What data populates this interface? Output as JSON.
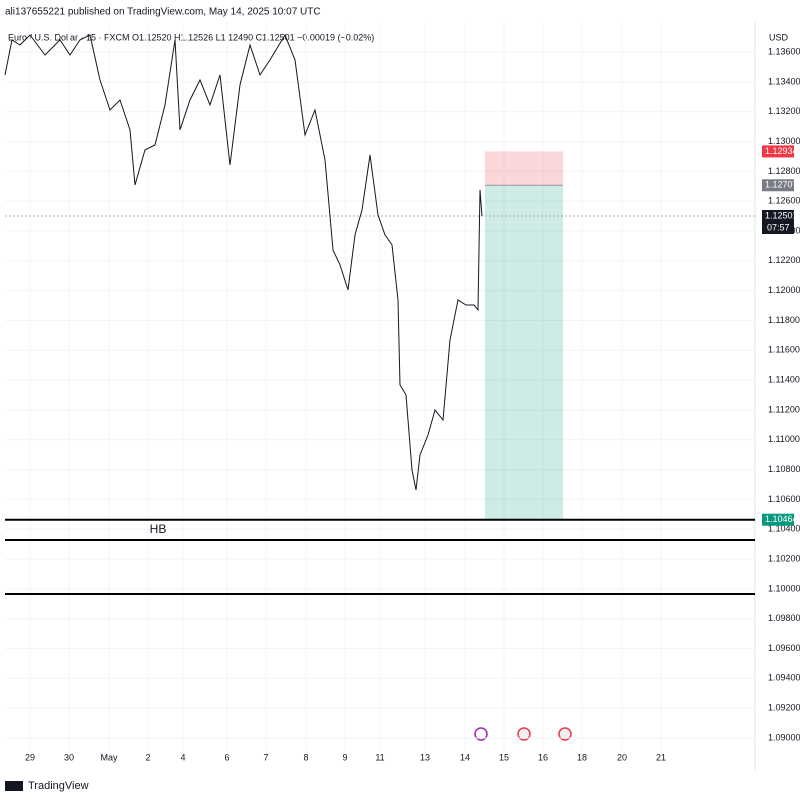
{
  "chart_data": {
    "type": "line",
    "publisher": "ali137655221 published on TradingView.com, May 14, 2025 10:07 UTC",
    "symbol_legend": "Euro / U.S. Dollar · 15 · FXCM  O1.12520  H1.12526  L1.12490  C1.12501  −0.00019 (−0.02%)",
    "currency": "USD",
    "brand": "TradingView",
    "color": "#131722",
    "x": [
      0,
      7,
      15,
      25,
      40,
      55,
      65,
      75,
      85,
      95,
      105,
      115,
      125,
      130,
      140,
      150,
      160,
      170,
      175,
      185,
      195,
      205,
      215,
      225,
      235,
      245,
      255,
      265,
      280,
      290,
      300,
      310,
      320,
      328,
      335,
      343,
      350,
      357,
      365,
      373,
      380,
      387,
      393,
      395,
      401,
      407,
      411,
      415,
      423,
      430,
      438,
      445,
      453,
      461,
      469,
      473,
      475,
      477
    ],
    "values": [
      1.13447,
      1.13682,
      1.13648,
      1.13715,
      1.13581,
      1.13682,
      1.13581,
      1.13682,
      1.13715,
      1.13413,
      1.13212,
      1.13279,
      1.13078,
      1.12709,
      1.12944,
      1.12977,
      1.13246,
      1.13682,
      1.13078,
      1.13279,
      1.13413,
      1.13246,
      1.13447,
      1.12843,
      1.1338,
      1.13648,
      1.13447,
      1.13548,
      1.13715,
      1.13548,
      1.13045,
      1.13212,
      1.12877,
      1.12273,
      1.12173,
      1.12005,
      1.12374,
      1.12541,
      1.1291,
      1.12508,
      1.12374,
      1.12307,
      1.11938,
      1.11368,
      1.11301,
      1.10798,
      1.10663,
      1.10898,
      1.11032,
      1.112,
      1.11133,
      1.1167,
      1.11938,
      1.11904,
      1.11904,
      1.11871,
      1.12676,
      1.12501
    ],
    "xlim": [
      0,
      750
    ],
    "ylim": [
      1.08906,
      1.13802
    ],
    "xticks": [
      {
        "value": 25,
        "label": "29"
      },
      {
        "value": 64,
        "label": "30"
      },
      {
        "value": 104,
        "label": "May"
      },
      {
        "value": 143,
        "label": "2"
      },
      {
        "value": 178,
        "label": "4"
      },
      {
        "value": 222,
        "label": "6"
      },
      {
        "value": 261,
        "label": "7"
      },
      {
        "value": 301,
        "label": "8"
      },
      {
        "value": 340,
        "label": "9"
      },
      {
        "value": 375,
        "label": "11"
      },
      {
        "value": 420,
        "label": "13"
      },
      {
        "value": 460,
        "label": "14"
      },
      {
        "value": 499,
        "label": "15"
      },
      {
        "value": 538,
        "label": "16"
      },
      {
        "value": 577,
        "label": "18"
      },
      {
        "value": 617,
        "label": "20"
      },
      {
        "value": 656,
        "label": "21"
      }
    ],
    "yticks": [
      {
        "value": 1.09,
        "label": "1.09000"
      },
      {
        "value": 1.092,
        "label": "1.09200"
      },
      {
        "value": 1.094,
        "label": "1.09400"
      },
      {
        "value": 1.096,
        "label": "1.09600"
      },
      {
        "value": 1.098,
        "label": "1.09800"
      },
      {
        "value": 1.1,
        "label": "1.10000"
      },
      {
        "value": 1.102,
        "label": "1.10200"
      },
      {
        "value": 1.104,
        "label": "1.10400"
      },
      {
        "value": 1.106,
        "label": "1.10600"
      },
      {
        "value": 1.108,
        "label": "1.10800"
      },
      {
        "value": 1.11,
        "label": "1.11000"
      },
      {
        "value": 1.112,
        "label": "1.11200"
      },
      {
        "value": 1.114,
        "label": "1.11400"
      },
      {
        "value": 1.116,
        "label": "1.11600"
      },
      {
        "value": 1.118,
        "label": "1.11800"
      },
      {
        "value": 1.12,
        "label": "1.12000"
      },
      {
        "value": 1.122,
        "label": "1.12200"
      },
      {
        "value": 1.124,
        "label": "1.12400"
      },
      {
        "value": 1.126,
        "label": "1.12600"
      },
      {
        "value": 1.128,
        "label": "1.12800"
      },
      {
        "value": 1.13,
        "label": "1.13000"
      },
      {
        "value": 1.132,
        "label": "1.13200"
      },
      {
        "value": 1.134,
        "label": "1.13400"
      },
      {
        "value": 1.136,
        "label": "1.13600"
      }
    ],
    "grid": true,
    "last_price": 1.12501,
    "countdown": "07:57",
    "position": {
      "stop": 1.12934,
      "entry": 1.12707,
      "target": 1.10464,
      "x_start": 480,
      "x_end": 558
    },
    "levels": [
      1.10464,
      1.10328,
      1.09966
    ],
    "level_label": "HB"
  }
}
